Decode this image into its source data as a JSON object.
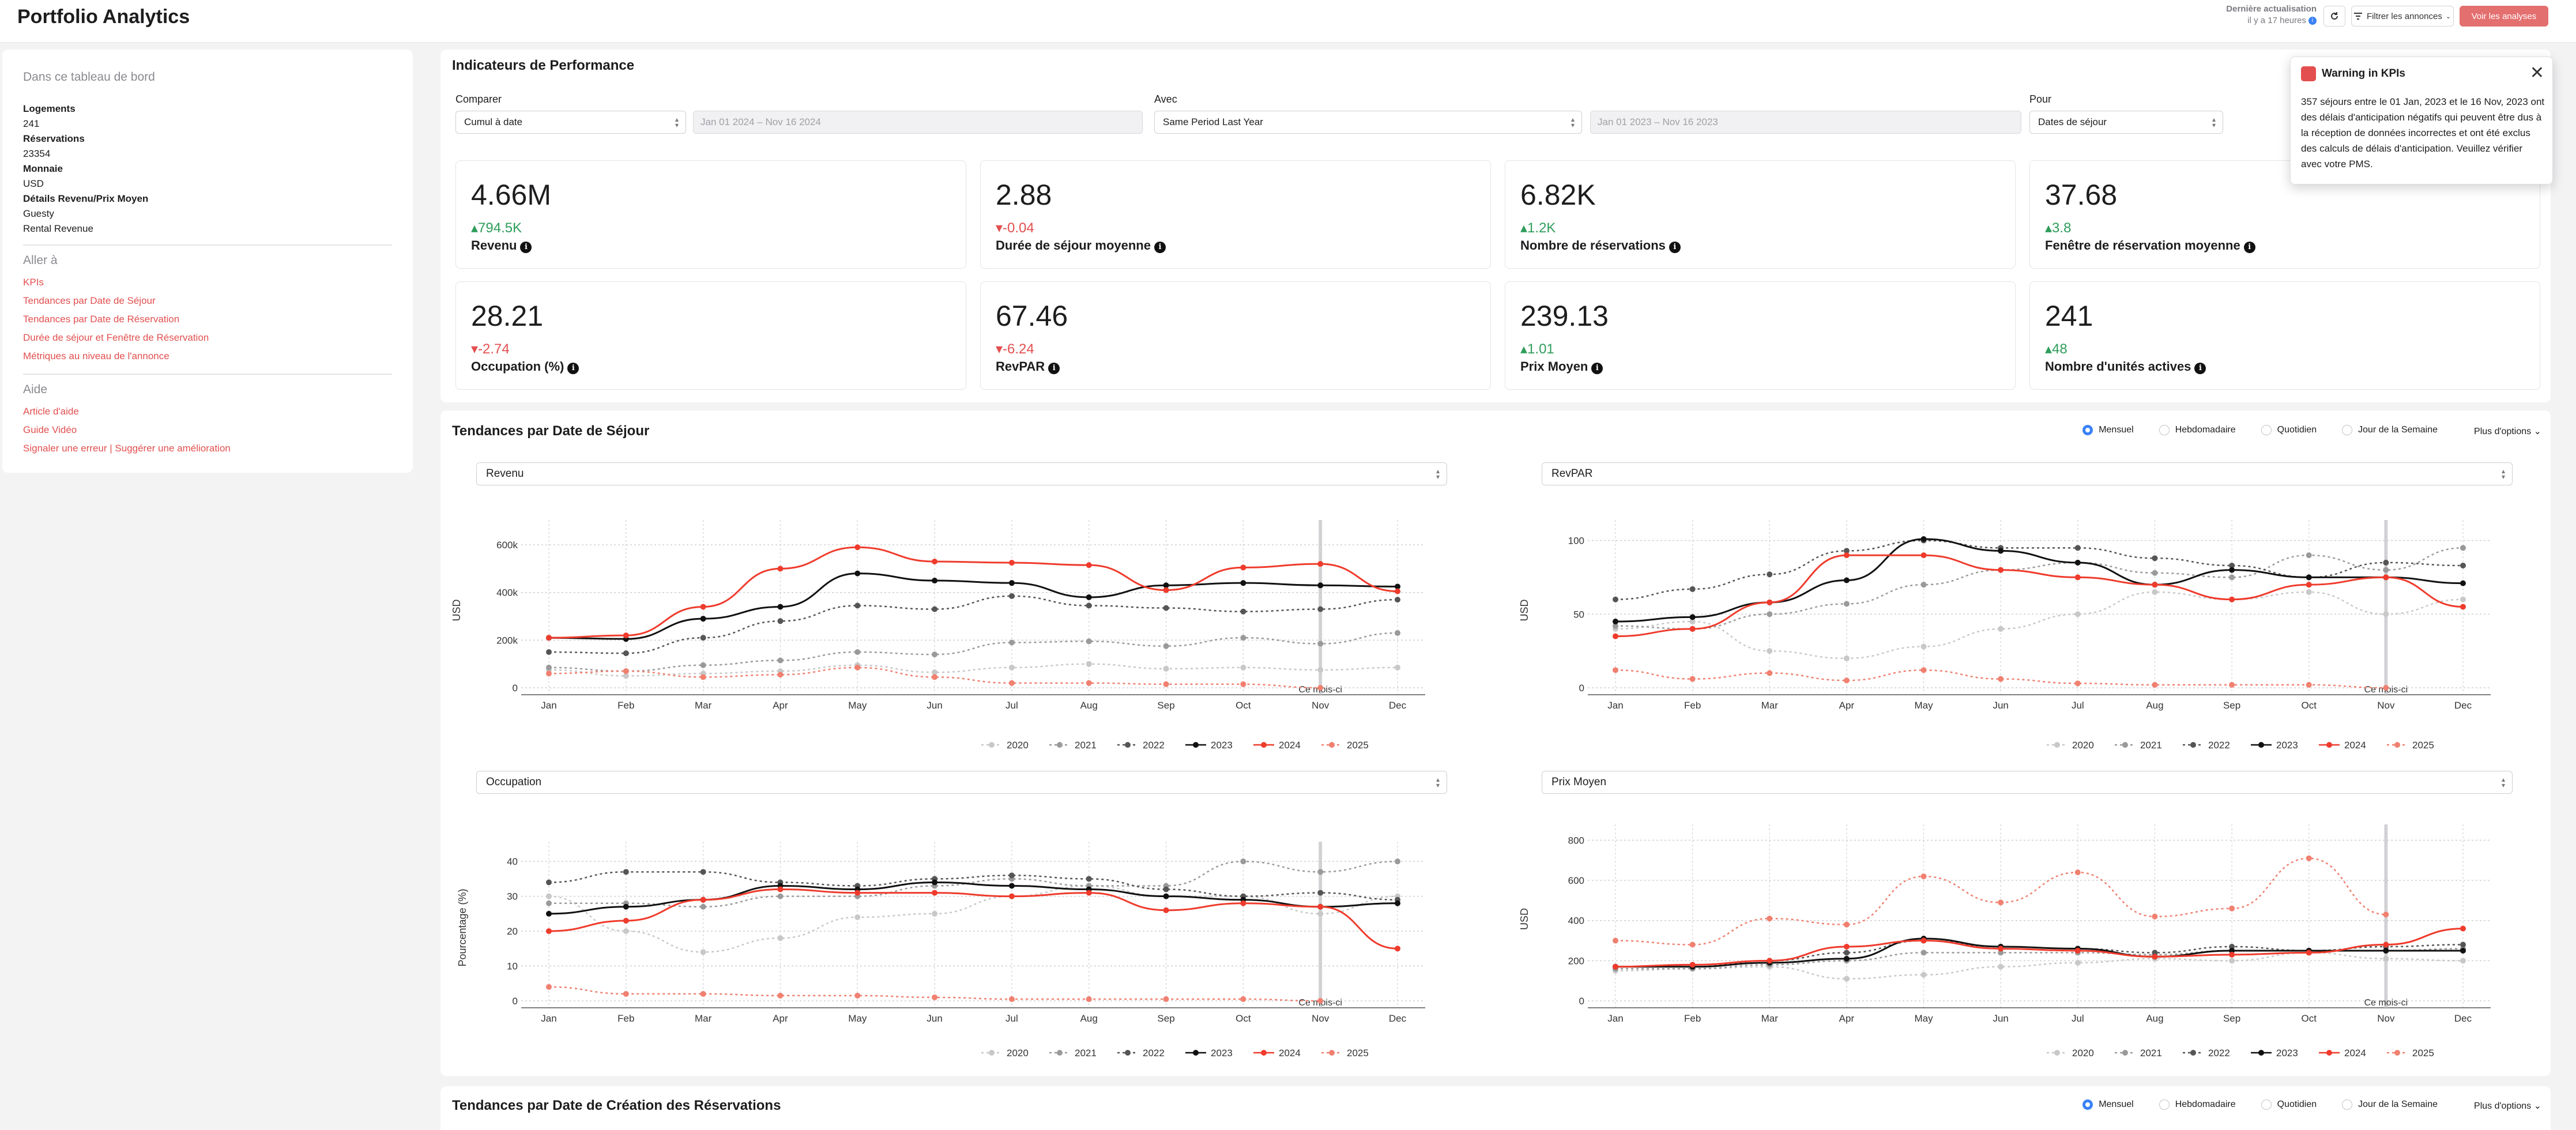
{
  "header": {
    "title": "Portfolio Analytics",
    "last_update_label": "Dernière actualisation",
    "last_update_value": "il y a 17 heures",
    "filter_label": "Filtrer les annonces",
    "analyses_button": "Voir les analyses"
  },
  "sidebar": {
    "heading": "Dans ce tableau de bord",
    "details": [
      {
        "key": "Logements",
        "value": "241"
      },
      {
        "key": "Réservations",
        "value": "23354"
      },
      {
        "key": "Monnaie",
        "value": "USD"
      },
      {
        "key": "Détails Revenu/Prix Moyen",
        "value": "Guesty"
      }
    ],
    "extra_line": "Rental Revenue",
    "goto_heading": "Aller à",
    "goto_links": [
      "KPIs",
      "Tendances par Date de Séjour",
      "Tendances par Date de Réservation",
      "Durée de séjour et Fenêtre de Réservation",
      "Métriques au niveau de l'annonce"
    ],
    "help_heading": "Aide",
    "help_links": [
      "Article d'aide",
      "Guide Vidéo",
      "Signaler une erreur | Suggérer une amélioration"
    ]
  },
  "kpi_section": {
    "title": "Indicateurs de Performance",
    "compare_label": "Comparer",
    "compare_value": "Cumul à date",
    "compare_range": "Jan 01 2024 – Nov 16 2024",
    "with_label": "Avec",
    "with_value": "Same Period Last Year",
    "with_range": "Jan 01 2023 – Nov 16 2023",
    "for_label": "Pour",
    "for_value": "Dates de séjour",
    "cards": [
      {
        "value": "4.66M",
        "delta": "794.5K",
        "dir": "up",
        "label": "Revenu"
      },
      {
        "value": "2.88",
        "delta": "-0.04",
        "dir": "down",
        "label": "Durée de séjour moyenne"
      },
      {
        "value": "6.82K",
        "delta": "1.2K",
        "dir": "up",
        "label": "Nombre de réservations"
      },
      {
        "value": "37.68",
        "delta": "3.8",
        "dir": "up",
        "label": "Fenêtre de réservation moyenne"
      },
      {
        "value": "28.21",
        "delta": "-2.74",
        "dir": "down",
        "label": "Occupation (%)"
      },
      {
        "value": "67.46",
        "delta": "-6.24",
        "dir": "down",
        "label": "RevPAR"
      },
      {
        "value": "239.13",
        "delta": "1.01",
        "dir": "up",
        "label": "Prix Moyen"
      },
      {
        "value": "241",
        "delta": "48",
        "dir": "up",
        "label": "Nombre d'unités actives"
      }
    ]
  },
  "warning": {
    "title": "Warning in KPIs",
    "body": "357 séjours entre le 01 Jan, 2023 et le 16 Nov, 2023 ont des délais d'anticipation négatifs qui peuvent être dus à la réception de données incorrectes et ont été exclus des calculs de délais d'anticipation. Veuillez vérifier avec votre PMS.",
    "color": "#e34f4f"
  },
  "trends_section": {
    "title": "Tendances par Date de Séjour",
    "options": [
      "Mensuel",
      "Hebdomadaire",
      "Quotidien",
      "Jour de la Semaine"
    ],
    "selected": "Mensuel",
    "more_label": "Plus d'options"
  },
  "booking_section": {
    "title": "Tendances par Date de Création des Réservations",
    "options": [
      "Mensuel",
      "Hebdomadaire",
      "Quotidien",
      "Jour de la Semaine"
    ],
    "selected": "Mensuel",
    "more_label": "Plus d'options"
  },
  "chart_data": [
    {
      "type": "line",
      "select_label": "Revenu",
      "ylabel": "USD",
      "y_ticks": [
        0,
        200000,
        400000,
        600000
      ],
      "y_tick_labels": [
        "0",
        "200k",
        "400k",
        "600k"
      ],
      "ylim": [
        0,
        680000
      ],
      "categories": [
        "Jan",
        "Feb",
        "Mar",
        "Apr",
        "May",
        "Jun",
        "Jul",
        "Aug",
        "Sep",
        "Oct",
        "Nov",
        "Dec"
      ],
      "marker_label": "Ce mois-ci",
      "marker_month": "Nov",
      "series": [
        {
          "name": "2020",
          "color": "#c8c8c8",
          "dash": "4,5",
          "values": [
            75000,
            50000,
            60000,
            70000,
            95000,
            65000,
            85000,
            100000,
            80000,
            85000,
            75000,
            85000
          ]
        },
        {
          "name": "2021",
          "color": "#9a9a9a",
          "dash": "4,5",
          "values": [
            85000,
            70000,
            95000,
            115000,
            150000,
            140000,
            190000,
            195000,
            175000,
            210000,
            185000,
            230000
          ]
        },
        {
          "name": "2022",
          "color": "#555555",
          "dash": "4,5",
          "values": [
            150000,
            145000,
            210000,
            280000,
            345000,
            330000,
            385000,
            345000,
            335000,
            320000,
            330000,
            370000
          ]
        },
        {
          "name": "2023",
          "color": "#111111",
          "dash": "",
          "values": [
            210000,
            205000,
            290000,
            340000,
            480000,
            450000,
            440000,
            380000,
            430000,
            440000,
            430000,
            425000
          ]
        },
        {
          "name": "2024",
          "color": "#ef3b2c",
          "dash": "",
          "values": [
            210000,
            220000,
            340000,
            500000,
            590000,
            530000,
            525000,
            515000,
            410000,
            505000,
            520000,
            405000
          ]
        },
        {
          "name": "2025",
          "color": "#f08070",
          "dash": "4,5",
          "values": [
            60000,
            70000,
            45000,
            55000,
            85000,
            45000,
            20000,
            20000,
            15000,
            15000,
            0,
            null
          ]
        }
      ]
    },
    {
      "type": "line",
      "select_label": "RevPAR",
      "ylabel": "USD",
      "y_ticks": [
        0,
        50,
        100
      ],
      "y_tick_labels": [
        "0",
        "50",
        "100"
      ],
      "ylim": [
        0,
        110
      ],
      "categories": [
        "Jan",
        "Feb",
        "Mar",
        "Apr",
        "May",
        "Jun",
        "Jul",
        "Aug",
        "Sep",
        "Oct",
        "Nov",
        "Dec"
      ],
      "marker_label": "Ce mois-ci",
      "marker_month": "Nov",
      "series": [
        {
          "name": "2020",
          "color": "#c8c8c8",
          "dash": "4,5",
          "values": [
            40,
            45,
            25,
            20,
            28,
            40,
            50,
            65,
            60,
            65,
            50,
            60
          ]
        },
        {
          "name": "2021",
          "color": "#9a9a9a",
          "dash": "4,5",
          "values": [
            42,
            40,
            50,
            57,
            70,
            80,
            85,
            78,
            75,
            90,
            80,
            95
          ]
        },
        {
          "name": "2022",
          "color": "#555555",
          "dash": "4,5",
          "values": [
            60,
            67,
            77,
            93,
            100,
            95,
            95,
            88,
            83,
            75,
            85,
            83
          ]
        },
        {
          "name": "2023",
          "color": "#111111",
          "dash": "",
          "values": [
            45,
            48,
            58,
            73,
            101,
            93,
            85,
            70,
            80,
            75,
            75,
            71
          ]
        },
        {
          "name": "2024",
          "color": "#ef3b2c",
          "dash": "",
          "values": [
            35,
            40,
            58,
            90,
            90,
            80,
            75,
            70,
            60,
            70,
            75,
            55
          ]
        },
        {
          "name": "2025",
          "color": "#f08070",
          "dash": "4,5",
          "values": [
            12,
            6,
            10,
            5,
            12,
            6,
            3,
            2,
            2,
            2,
            0,
            null
          ]
        }
      ]
    },
    {
      "type": "line",
      "select_label": "Occupation",
      "ylabel": "Pourcentage (%)",
      "y_ticks": [
        0,
        10,
        20,
        30,
        40
      ],
      "y_tick_labels": [
        "0",
        "10",
        "20",
        "30",
        "40"
      ],
      "ylim": [
        0,
        44
      ],
      "categories": [
        "Jan",
        "Feb",
        "Mar",
        "Apr",
        "May",
        "Jun",
        "Jul",
        "Aug",
        "Sep",
        "Oct",
        "Nov",
        "Dec"
      ],
      "marker_label": "Ce mois-ci",
      "marker_month": "Nov",
      "series": [
        {
          "name": "2020",
          "color": "#c8c8c8",
          "dash": "4,5",
          "values": [
            30,
            20,
            14,
            18,
            24,
            25,
            30,
            33,
            30,
            30,
            25,
            30
          ]
        },
        {
          "name": "2021",
          "color": "#9a9a9a",
          "dash": "4,5",
          "values": [
            28,
            28,
            27,
            30,
            30,
            33,
            35,
            33,
            33,
            40,
            37,
            40
          ]
        },
        {
          "name": "2022",
          "color": "#555555",
          "dash": "4,5",
          "values": [
            34,
            37,
            37,
            34,
            33,
            35,
            36,
            35,
            32,
            30,
            31,
            29
          ]
        },
        {
          "name": "2023",
          "color": "#111111",
          "dash": "",
          "values": [
            25,
            27,
            29,
            33,
            32,
            34,
            33,
            32,
            30,
            29,
            27,
            28
          ]
        },
        {
          "name": "2024",
          "color": "#ef3b2c",
          "dash": "",
          "values": [
            20,
            23,
            29,
            32,
            31,
            31,
            30,
            31,
            26,
            28,
            27,
            15
          ]
        },
        {
          "name": "2025",
          "color": "#f08070",
          "dash": "4,5",
          "values": [
            4,
            2,
            2,
            1.5,
            1.5,
            1,
            0.5,
            0.5,
            0.5,
            0.5,
            0,
            null
          ]
        }
      ]
    },
    {
      "type": "line",
      "select_label": "Prix Moyen",
      "ylabel": "USD",
      "y_ticks": [
        0,
        200,
        400,
        600,
        800
      ],
      "y_tick_labels": [
        "0",
        "200",
        "400",
        "600",
        "800"
      ],
      "ylim": [
        0,
        850
      ],
      "categories": [
        "Jan",
        "Feb",
        "Mar",
        "Apr",
        "May",
        "Jun",
        "Jul",
        "Aug",
        "Sep",
        "Oct",
        "Nov",
        "Dec"
      ],
      "marker_label": "Ce mois-ci",
      "marker_month": "Nov",
      "series": [
        {
          "name": "2020",
          "color": "#c8c8c8",
          "dash": "4,5",
          "values": [
            150,
            160,
            170,
            110,
            130,
            170,
            190,
            210,
            200,
            240,
            210,
            200
          ]
        },
        {
          "name": "2021",
          "color": "#9a9a9a",
          "dash": "4,5",
          "values": [
            160,
            160,
            180,
            200,
            240,
            240,
            240,
            230,
            250,
            250,
            250,
            260
          ]
        },
        {
          "name": "2022",
          "color": "#555555",
          "dash": "4,5",
          "values": [
            170,
            170,
            200,
            240,
            300,
            270,
            260,
            240,
            270,
            250,
            270,
            280
          ]
        },
        {
          "name": "2023",
          "color": "#111111",
          "dash": "",
          "values": [
            170,
            170,
            190,
            210,
            310,
            270,
            260,
            220,
            250,
            250,
            250,
            250
          ]
        },
        {
          "name": "2024",
          "color": "#ef3b2c",
          "dash": "",
          "values": [
            170,
            180,
            200,
            270,
            300,
            260,
            250,
            220,
            230,
            240,
            280,
            360
          ]
        },
        {
          "name": "2025",
          "color": "#f08070",
          "dash": "4,5",
          "values": [
            300,
            280,
            410,
            380,
            620,
            490,
            640,
            420,
            460,
            710,
            430,
            null
          ]
        }
      ]
    }
  ]
}
